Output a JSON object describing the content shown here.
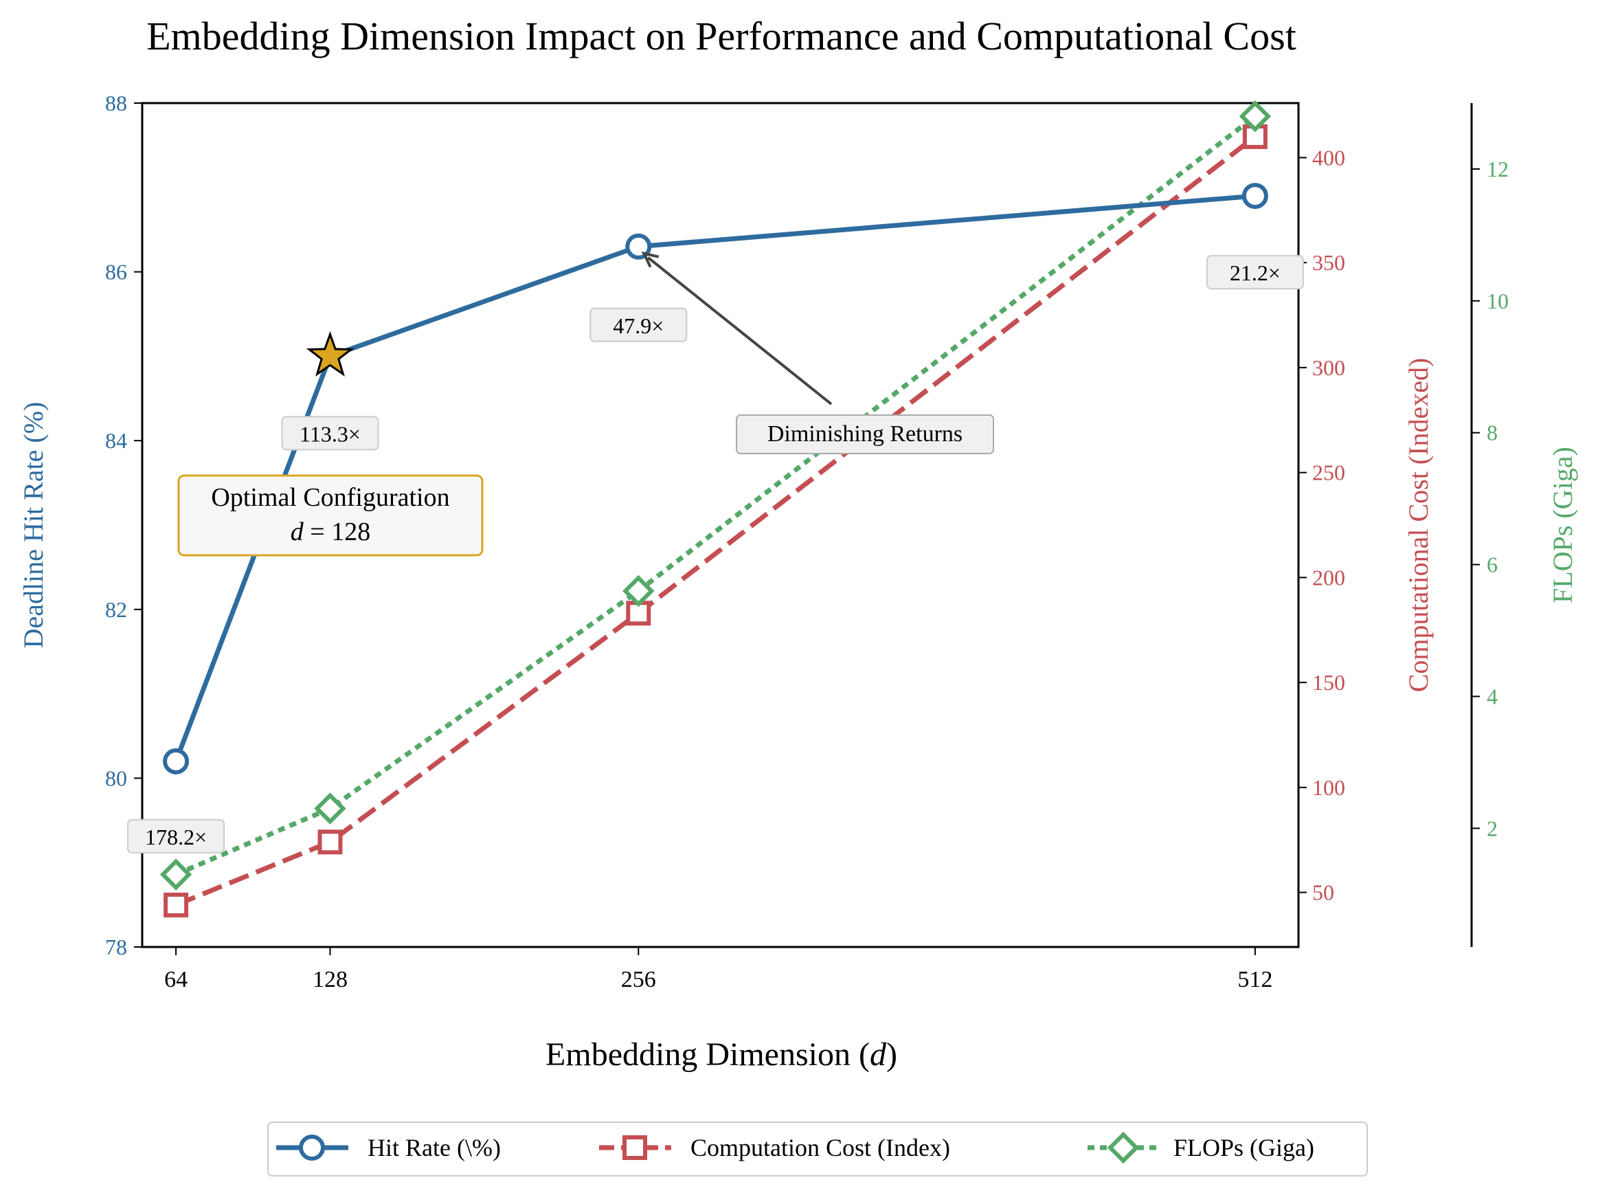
{
  "chart_data": {
    "type": "line",
    "title": "Embedding Dimension Impact on Performance and Computational Cost",
    "xlabel": "Embedding Dimension (",
    "xlabel_var": "d",
    "xlabel_end": ")",
    "x": [
      64,
      128,
      256,
      512
    ],
    "x_tick_labels": [
      "64",
      "128",
      "256",
      "512"
    ],
    "xlim": [
      50,
      530
    ],
    "axes": {
      "left": {
        "label": "Deadline Hit Rate (%)",
        "color": "#2e6b9e",
        "ylim": [
          78,
          88
        ],
        "ticks": [
          78,
          80,
          82,
          84,
          86,
          88
        ],
        "tick_labels": [
          "78",
          "80",
          "82",
          "84",
          "86",
          "88"
        ]
      },
      "right1": {
        "label": "Computational Cost (Indexed)",
        "color": "#c44e52",
        "ylim": [
          24,
          426
        ],
        "ticks": [
          50,
          100,
          150,
          200,
          250,
          300,
          350,
          400
        ],
        "tick_labels": [
          "50",
          "100",
          "150",
          "200",
          "250",
          "300",
          "350",
          "400"
        ]
      },
      "right2": {
        "label": "FLOPs (Giga)",
        "color": "#55a868",
        "ylim": [
          0.2,
          13.0
        ],
        "ticks": [
          2,
          4,
          6,
          8,
          10,
          12
        ],
        "tick_labels": [
          "2",
          "4",
          "6",
          "8",
          "10",
          "12"
        ]
      }
    },
    "series": [
      {
        "name": "Hit Rate (\\%)",
        "axis": "left",
        "values": [
          80.2,
          85.0,
          86.3,
          86.9
        ],
        "color": "#2e6b9e",
        "marker": "circle",
        "dash": "solid"
      },
      {
        "name": "Computation Cost (Index)",
        "axis": "right1",
        "values": [
          44,
          74,
          183,
          410
        ],
        "color": "#c44e52",
        "marker": "square",
        "dash": "dashed"
      },
      {
        "name": "FLOPs (Giga)",
        "axis": "right2",
        "values": [
          1.3,
          2.3,
          5.6,
          12.8
        ],
        "color": "#55a868",
        "marker": "diamond",
        "dash": "dotted"
      }
    ],
    "highlight": {
      "x": 128,
      "value": 85.0,
      "marker": "star",
      "color": "#daa520"
    },
    "point_labels": [
      "178.2×",
      "113.3×",
      "47.9×",
      "21.2×"
    ],
    "annotations": {
      "optimal_line1": "Optimal Configuration",
      "optimal_var": "d",
      "optimal_eq": " = 128",
      "diminishing": "Diminishing Returns"
    },
    "grid": false,
    "legend_position": "bottom-center"
  }
}
